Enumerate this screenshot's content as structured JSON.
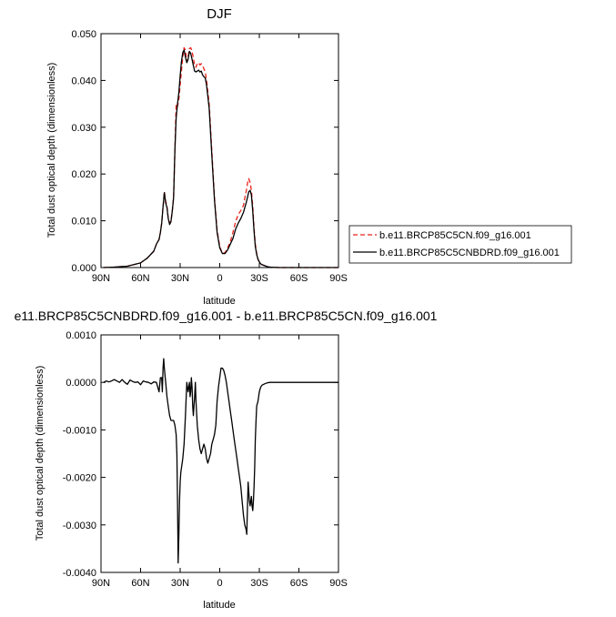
{
  "chart_data": [
    {
      "type": "line",
      "title": "DJF",
      "xlabel": "latitude",
      "ylabel": "Total dust optical depth (dimensionless)",
      "xlim": [
        90,
        -90
      ],
      "ylim": [
        0,
        0.05
      ],
      "x_ticks": [
        90,
        60,
        30,
        0,
        -30,
        -60,
        -90
      ],
      "x_tick_labels": [
        "90N",
        "60N",
        "30N",
        "0",
        "30S",
        "60S",
        "90S"
      ],
      "y_ticks": [
        0,
        0.01,
        0.02,
        0.03,
        0.04,
        0.05
      ],
      "y_tick_labels": [
        "0.000",
        "0.010",
        "0.020",
        "0.030",
        "0.040",
        "0.050"
      ],
      "legend_position": "right",
      "series": [
        {
          "name": "b.e11.BRCP85C5CN.f09_g16.001",
          "color": "#e8211a",
          "dash": "dashed",
          "x": [
            88,
            80,
            70,
            60,
            55,
            50,
            48,
            47,
            46,
            45,
            44,
            43,
            42,
            41,
            40,
            39,
            38,
            37,
            36,
            35,
            34,
            33,
            32,
            31,
            30,
            29,
            28,
            27,
            26,
            25,
            24,
            23,
            22,
            21,
            20,
            19,
            18,
            17,
            16,
            15,
            14,
            13,
            12,
            11,
            10,
            8,
            6,
            4,
            2,
            0,
            -2,
            -4,
            -6,
            -8,
            -10,
            -12,
            -14,
            -16,
            -18,
            -19,
            -20,
            -21,
            -22,
            -23,
            -24,
            -25,
            -26,
            -27,
            -28,
            -29,
            -30,
            -31,
            -32,
            -34,
            -36,
            -38,
            -40,
            -45,
            -50,
            -60,
            -70,
            -90
          ],
          "y": [
            0,
            0.0001,
            0.0003,
            0.001,
            0.002,
            0.0035,
            0.005,
            0.0055,
            0.006,
            0.0075,
            0.0095,
            0.013,
            0.0162,
            0.0142,
            0.0132,
            0.0105,
            0.0095,
            0.01,
            0.012,
            0.015,
            0.025,
            0.035,
            0.0345,
            0.036,
            0.039,
            0.042,
            0.045,
            0.047,
            0.0465,
            0.044,
            0.045,
            0.0468,
            0.047,
            0.0462,
            0.0448,
            0.0432,
            0.0428,
            0.0436,
            0.0438,
            0.0433,
            0.0436,
            0.0432,
            0.0425,
            0.0418,
            0.04,
            0.035,
            0.025,
            0.015,
            0.008,
            0.0045,
            0.003,
            0.0032,
            0.0042,
            0.0055,
            0.0075,
            0.0098,
            0.0113,
            0.0122,
            0.0133,
            0.0148,
            0.0162,
            0.018,
            0.019,
            0.0182,
            0.0165,
            0.013,
            0.0085,
            0.005,
            0.003,
            0.0018,
            0.0012,
            0.0008,
            0.0006,
            0.0004,
            0.0002,
            0.0001,
            5e-05,
            0,
            0,
            0,
            0,
            0
          ]
        },
        {
          "name": "b.e11.BRCP85C5CNBDRD.f09_g16.001",
          "color": "#000000",
          "dash": "solid",
          "x": [
            88,
            80,
            70,
            60,
            55,
            50,
            48,
            47,
            46,
            45,
            44,
            43,
            42,
            41,
            40,
            39,
            38,
            37,
            36,
            35,
            34,
            33,
            32,
            31,
            30,
            29,
            28,
            27,
            26,
            25,
            24,
            23,
            22,
            21,
            20,
            19,
            18,
            17,
            16,
            15,
            14,
            13,
            12,
            11,
            10,
            8,
            6,
            4,
            2,
            0,
            -2,
            -4,
            -6,
            -8,
            -10,
            -12,
            -14,
            -16,
            -18,
            -19,
            -20,
            -21,
            -22,
            -23,
            -24,
            -25,
            -26,
            -27,
            -28,
            -29,
            -30,
            -31,
            -32,
            -34,
            -36,
            -38,
            -40,
            -45,
            -50,
            -60,
            -70,
            -90
          ],
          "y": [
            0,
            0.0001,
            0.0003,
            0.001,
            0.002,
            0.0035,
            0.005,
            0.0055,
            0.006,
            0.0075,
            0.0095,
            0.013,
            0.016,
            0.0138,
            0.0128,
            0.0105,
            0.0092,
            0.0098,
            0.012,
            0.015,
            0.025,
            0.032,
            0.035,
            0.0375,
            0.041,
            0.044,
            0.046,
            0.0465,
            0.045,
            0.0438,
            0.0445,
            0.0462,
            0.0458,
            0.0445,
            0.0432,
            0.042,
            0.0418,
            0.042,
            0.0422,
            0.0418,
            0.042,
            0.0412,
            0.0408,
            0.0405,
            0.039,
            0.034,
            0.024,
            0.0145,
            0.0075,
            0.0042,
            0.003,
            0.003,
            0.0038,
            0.005,
            0.0062,
            0.0082,
            0.0095,
            0.0105,
            0.0118,
            0.0128,
            0.0138,
            0.015,
            0.0162,
            0.0165,
            0.0155,
            0.012,
            0.0078,
            0.0045,
            0.0028,
            0.0018,
            0.0012,
            0.0008,
            0.0006,
            0.0004,
            0.0002,
            0.0001,
            5e-05,
            0,
            0,
            0,
            0,
            0
          ]
        }
      ]
    },
    {
      "type": "line",
      "title": "e11.BRCP85C5CNBDRD.f09_g16.001 - b.e11.BRCP85C5CN.f09_g16.001",
      "xlabel": "latitude",
      "ylabel": "Total dust optical depth (dimensionless)",
      "xlim": [
        90,
        -90
      ],
      "ylim": [
        -0.004,
        0.001
      ],
      "x_ticks": [
        90,
        60,
        30,
        0,
        -30,
        -60,
        -90
      ],
      "x_tick_labels": [
        "90N",
        "60N",
        "30N",
        "0",
        "30S",
        "60S",
        "90S"
      ],
      "y_ticks": [
        -0.004,
        -0.003,
        -0.002,
        -0.001,
        0,
        0.001
      ],
      "y_tick_labels": [
        "-0.0040",
        "-0.0030",
        "-0.0020",
        "-0.0010",
        "0.0000",
        "0.0010"
      ],
      "series": [
        {
          "color": "#000000",
          "dash": "solid",
          "x": [
            88,
            86,
            84,
            82,
            80,
            78,
            76,
            74,
            72,
            70,
            68,
            66,
            64,
            62,
            60,
            58,
            56,
            54,
            52,
            50,
            48,
            46,
            45,
            44,
            43.5,
            43,
            42.5,
            42,
            41,
            40,
            39,
            38,
            37,
            36,
            35,
            34,
            33,
            32.5,
            32,
            31.5,
            31,
            30.5,
            30,
            29.5,
            29,
            28.5,
            28,
            27,
            26,
            25,
            24,
            23,
            22.5,
            22,
            21.5,
            21,
            20.5,
            20,
            19.5,
            19,
            18.5,
            18,
            17,
            16,
            15,
            14,
            13,
            12,
            11,
            10,
            9,
            8,
            7,
            6,
            5,
            4,
            3,
            2,
            1,
            0,
            -1,
            -2,
            -3,
            -4,
            -5,
            -6,
            -7,
            -8,
            -9,
            -10,
            -11,
            -12,
            -13,
            -14,
            -15,
            -16,
            -17,
            -18,
            -19,
            -20,
            -20.5,
            -21,
            -21.5,
            -22,
            -22.5,
            -23,
            -23.5,
            -24,
            -24.5,
            -25,
            -25.5,
            -26,
            -26.5,
            -27,
            -27.5,
            -28,
            -29,
            -30,
            -31,
            -32,
            -34,
            -36,
            -38,
            -40,
            -45,
            -50,
            -55,
            -60,
            -70,
            -80,
            -90
          ],
          "y": [
            0.0,
            3e-05,
            1e-05,
            3e-05,
            6e-05,
            3e-05,
            0.0,
            6e-05,
            0.0,
            -4e-05,
            5e-05,
            2e-05,
            0.0,
            1e-05,
            -5e-05,
            3e-05,
            1e-05,
            0.0,
            -3e-05,
            1e-05,
            0.0,
            -0.0002,
            0.0001,
            0.0001,
            -0.0002,
            0.0003,
            0.0005,
            0.0003,
            0.0,
            -0.0003,
            -0.0005,
            -0.0007,
            -0.0008,
            -0.0008,
            -0.0008,
            -0.0009,
            -0.0011,
            -0.0015,
            -0.0025,
            -0.0038,
            -0.0032,
            -0.0025,
            -0.0021,
            -0.0019,
            -0.0018,
            -0.0017,
            -0.0016,
            -0.0013,
            -0.0007,
            0.0,
            -0.0002,
            0.0,
            -0.0003,
            -0.0002,
            0.0001,
            -0.0001,
            -0.0005,
            -0.0007,
            -0.0005,
            -0.0003,
            0.0,
            -0.0004,
            -0.0009,
            -0.0012,
            -0.0014,
            -0.0015,
            -0.0014,
            -0.0013,
            -0.0014,
            -0.0016,
            -0.0017,
            -0.0016,
            -0.0015,
            -0.0013,
            -0.0012,
            -0.0011,
            -0.0009,
            -0.0004,
            -0.0001,
            0.0001,
            0.0003,
            0.0003,
            0.00025,
            0.00015,
            0.0,
            -0.0002,
            -0.0004,
            -0.0006,
            -0.0008,
            -0.001,
            -0.0012,
            -0.0014,
            -0.0016,
            -0.0018,
            -0.002,
            -0.0022,
            -0.0025,
            -0.0028,
            -0.003,
            -0.0031,
            -0.0032,
            -0.0026,
            -0.0021,
            -0.0023,
            -0.0025,
            -0.0026,
            -0.0025,
            -0.0024,
            -0.0026,
            -0.0027,
            -0.0025,
            -0.0022,
            -0.0018,
            -0.0012,
            -0.0008,
            -0.0005,
            -0.0004,
            -0.0002,
            -0.0001,
            -6e-05,
            -3e-05,
            -1e-05,
            0.0,
            0.0,
            0.0,
            0.0,
            0.0,
            0.0,
            0.0,
            0.0,
            0.0
          ]
        }
      ]
    }
  ]
}
